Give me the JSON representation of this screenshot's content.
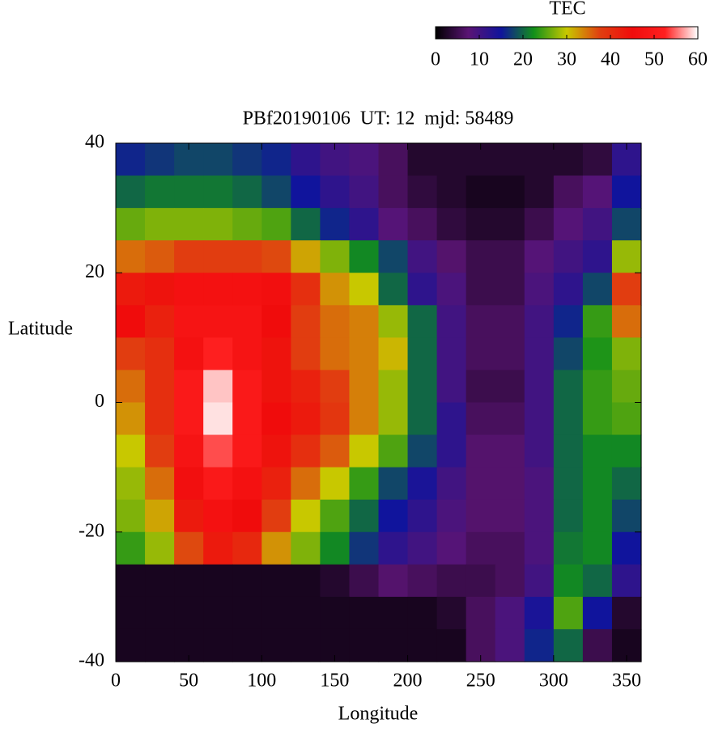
{
  "chart_data": {
    "type": "heatmap",
    "title": "PBf20190106  UT: 12  mjd: 58489",
    "xlabel": "Longitude",
    "ylabel": "Latitude",
    "colorbar_label": "TEC",
    "x": [
      10,
      30,
      50,
      70,
      90,
      110,
      130,
      150,
      170,
      190,
      210,
      230,
      250,
      270,
      290,
      310,
      330,
      350
    ],
    "y": [
      37.5,
      32.5,
      27.5,
      22.5,
      17.5,
      12.5,
      7.5,
      2.5,
      -2.5,
      -7.5,
      -12.5,
      -17.5,
      -22.5,
      -27.5,
      -32.5,
      -37.5
    ],
    "values": [
      [
        16,
        17,
        18,
        18,
        17,
        16,
        12,
        10,
        9,
        6,
        3,
        3,
        3,
        3,
        3,
        3,
        4,
        12
      ],
      [
        20,
        21,
        21,
        21,
        20,
        18,
        15,
        12,
        10,
        6,
        4,
        3,
        2,
        2,
        3,
        6,
        8,
        15
      ],
      [
        26,
        27,
        27,
        27,
        26,
        25,
        20,
        16,
        12,
        8,
        6,
        4,
        3,
        3,
        5,
        8,
        10,
        18
      ],
      [
        35,
        36,
        38,
        38,
        38,
        37,
        32,
        27,
        22,
        18,
        10,
        7,
        5,
        5,
        8,
        10,
        12,
        28
      ],
      [
        43,
        44,
        47,
        47,
        47,
        46,
        40,
        33,
        30,
        20,
        12,
        9,
        5,
        5,
        9,
        12,
        18,
        38
      ],
      [
        45,
        42,
        48,
        48,
        48,
        45,
        38,
        35,
        34,
        28,
        20,
        10,
        6,
        6,
        10,
        16,
        24,
        35
      ],
      [
        38,
        40,
        47,
        52,
        48,
        44,
        38,
        35,
        34,
        31,
        20,
        10,
        6,
        6,
        10,
        18,
        23,
        27
      ],
      [
        35,
        40,
        50,
        58,
        50,
        44,
        42,
        38,
        34,
        28,
        20,
        10,
        5,
        5,
        10,
        20,
        24,
        26
      ],
      [
        33,
        40,
        50,
        59,
        50,
        45,
        43,
        39,
        34,
        28,
        20,
        12,
        6,
        6,
        10,
        20,
        24,
        25
      ],
      [
        30,
        38,
        48,
        54,
        50,
        44,
        40,
        36,
        30,
        25,
        18,
        12,
        7,
        7,
        10,
        20,
        22,
        22
      ],
      [
        28,
        35,
        46,
        50,
        47,
        42,
        35,
        30,
        24,
        18,
        14,
        10,
        7,
        7,
        9,
        20,
        22,
        20
      ],
      [
        27,
        32,
        43,
        47,
        45,
        38,
        30,
        25,
        20,
        15,
        12,
        9,
        7,
        7,
        9,
        20,
        22,
        18
      ],
      [
        24,
        28,
        37,
        43,
        41,
        33,
        27,
        22,
        17,
        12,
        10,
        8,
        6,
        6,
        9,
        21,
        22,
        15
      ],
      [
        2,
        2,
        2,
        2,
        2,
        2,
        2,
        3,
        5,
        7,
        6,
        5,
        5,
        6,
        10,
        22,
        20,
        12
      ],
      [
        2,
        2,
        2,
        2,
        2,
        2,
        2,
        2,
        2,
        2,
        2,
        3,
        6,
        9,
        14,
        25,
        15,
        3
      ],
      [
        2,
        2,
        2,
        2,
        2,
        2,
        2,
        2,
        2,
        2,
        2,
        2,
        6,
        9,
        16,
        20,
        5,
        2
      ]
    ],
    "xlim": [
      0,
      360
    ],
    "ylim": [
      -40,
      40
    ],
    "xticks": [
      0,
      50,
      100,
      150,
      200,
      250,
      300,
      350
    ],
    "yticks": [
      -40,
      -20,
      0,
      20,
      40
    ],
    "clim": [
      0,
      60
    ],
    "cticks": [
      0,
      10,
      20,
      30,
      40,
      50,
      60
    ],
    "colormap": [
      "#000000",
      "#5a1474",
      "#10149c",
      "#12901a",
      "#c8c800",
      "#e04010",
      "#f00c0c",
      "#ff2020",
      "#ffffff"
    ]
  }
}
